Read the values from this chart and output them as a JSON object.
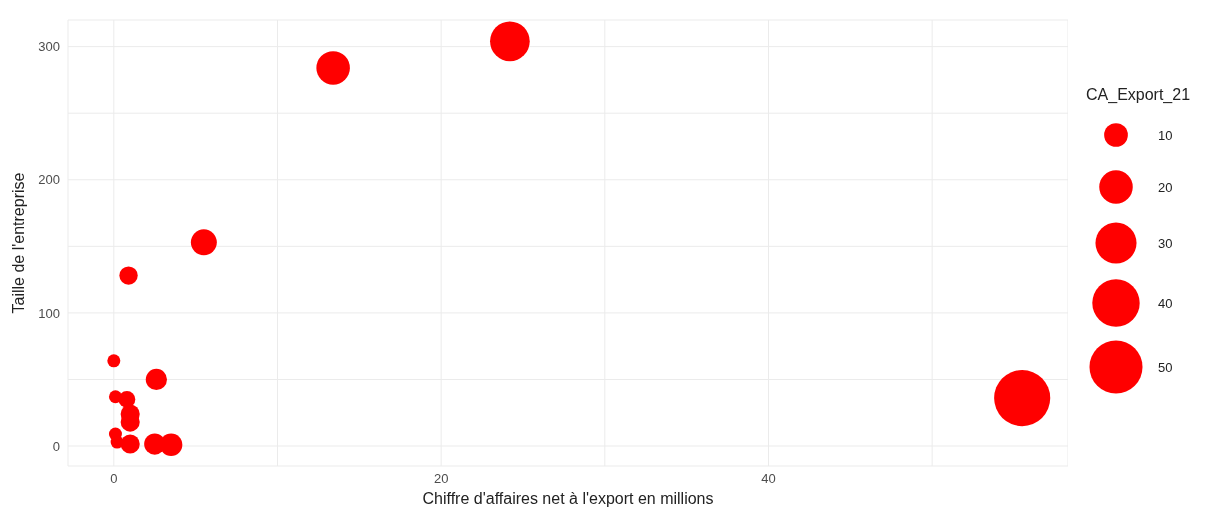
{
  "chart_data": {
    "type": "bubble",
    "xlabel": "Chiffre d'affaires net à l'export en millions",
    "ylabel": "Taille de l'entreprise",
    "legend_title": "CA_Export_21",
    "grid": true,
    "marker": "circle",
    "xlim": [
      -2.8,
      58.3
    ],
    "xticks": [
      0,
      {
        "value": 10,
        "label": null
      },
      20,
      {
        "value": 30,
        "label": null
      },
      40,
      {
        "value": 50,
        "label": null
      }
    ],
    "ylim": [
      -15,
      320
    ],
    "yticks": [
      0,
      {
        "value": 50,
        "label": null
      },
      100,
      {
        "value": 150,
        "label": null
      },
      200,
      {
        "value": 250,
        "label": null
      },
      300
    ],
    "size_legend": [
      10,
      20,
      30,
      40,
      50
    ],
    "series": [
      {
        "color": "#ff0000",
        "x": [
          55.5,
          24.2,
          13.4,
          5.5,
          0.9,
          0,
          2.6,
          0.1,
          0.8,
          1,
          1,
          0.1,
          0.2,
          1,
          2.5,
          3.5
        ],
        "values": [
          36,
          304,
          284,
          153,
          128,
          64,
          50,
          37,
          35,
          24,
          18,
          9,
          3,
          1.5,
          1.5,
          1
        ],
        "sizes": [
          56,
          28,
          20,
          12,
          6,
          3,
          8,
          3,
          5,
          6.5,
          6.5,
          3,
          3,
          6.5,
          8,
          9
        ]
      }
    ]
  }
}
